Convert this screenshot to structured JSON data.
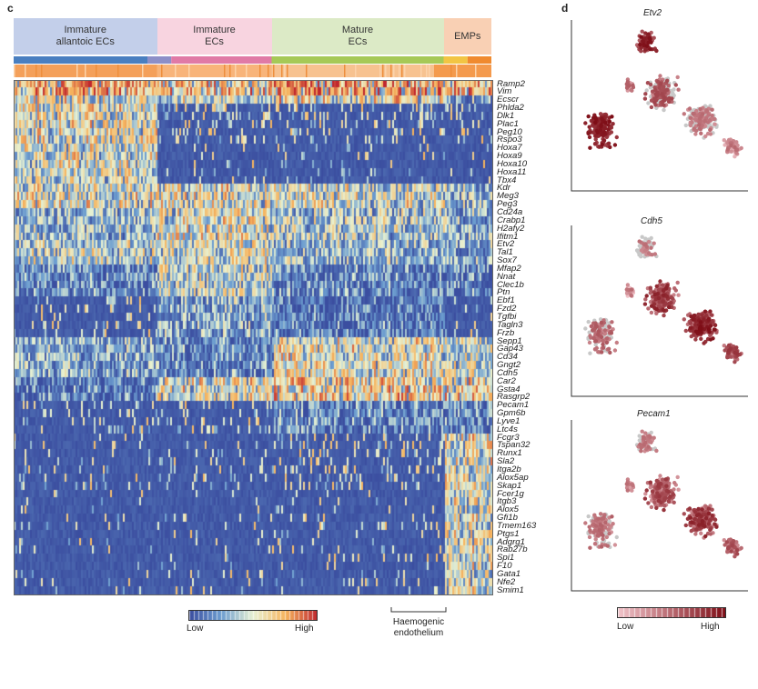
{
  "panel_c": {
    "letter": "c",
    "clusters": [
      {
        "label": "Immature\nallantoic ECs",
        "color": "#c3cfea",
        "start": 0,
        "end": 0.3
      },
      {
        "label": "Immature\nECs",
        "color": "#f8d4e0",
        "start": 0.3,
        "end": 0.54
      },
      {
        "label": "Mature\nECs",
        "color": "#dceac6",
        "start": 0.54,
        "end": 0.9
      },
      {
        "label": "EMPs",
        "color": "#f9d0b4",
        "start": 0.9,
        "end": 1.0
      }
    ],
    "genes": [
      "Ramp2",
      "Vim",
      "Ecscr",
      "Phlda2",
      "Dlk1",
      "Plac1",
      "Peg10",
      "Rspo3",
      "Hoxa7",
      "Hoxa9",
      "Hoxa10",
      "Hoxa11",
      "Tbx4",
      "Kdr",
      "Meg3",
      "Peg3",
      "Cd24a",
      "Crabp1",
      "H2afy2",
      "Ifitm1",
      "Etv2",
      "Tal1",
      "Sox7",
      "Mfap2",
      "Nnat",
      "Clec1b",
      "Ptn",
      "Ebf1",
      "Fzd2",
      "Tgfbi",
      "Tagln3",
      "Frzb",
      "Sepp1",
      "Gap43",
      "Cd34",
      "Gngt2",
      "Cdh5",
      "Car2",
      "Gsta4",
      "Rasgrp2",
      "Pecam1",
      "Gpm6b",
      "Lyve1",
      "Ltc4s",
      "Fcgr3",
      "Tspan32",
      "Runx1",
      "Sla2",
      "Itga2b",
      "Alox5ap",
      "Skap1",
      "Fcer1g",
      "Itgb3",
      "Alox5",
      "Gfi1b",
      "Tmem163",
      "Ptgs1",
      "Adgrg1",
      "Rab27b",
      "Spi1",
      "F10",
      "Gata1",
      "Nfe2",
      "Smim1"
    ],
    "colorbar": {
      "low": "Low",
      "high": "High"
    },
    "annotation": "Haemogenic\nendothelium"
  },
  "panel_d": {
    "letter": "d",
    "plots": [
      {
        "title": "Etv2"
      },
      {
        "title": "Cdh5"
      },
      {
        "title": "Pecam1"
      }
    ],
    "colorbar": {
      "low": "Low",
      "high": "High"
    }
  },
  "chart_data": [
    {
      "type": "heatmap",
      "title": "",
      "rows": "genes (64)",
      "columns": "single cells ordered by cluster",
      "column_groups": [
        "Immature allantoic ECs",
        "Immature ECs",
        "Mature ECs",
        "EMPs"
      ],
      "colorscale": [
        "#3b4ea0",
        "#6d9ed0",
        "#e8f2d2",
        "#f6b45e",
        "#c0282e"
      ],
      "legend": [
        "Low",
        "High"
      ]
    },
    {
      "type": "scatter",
      "panels": [
        "Etv2",
        "Cdh5",
        "Pecam1"
      ],
      "colorscale": [
        "#f1c3c9",
        "#7e0d16"
      ],
      "legend": [
        "Low",
        "High"
      ]
    }
  ]
}
